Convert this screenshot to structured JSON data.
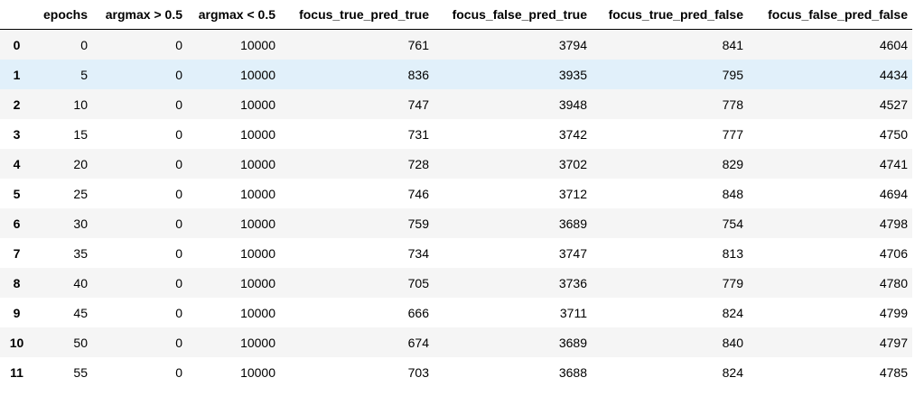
{
  "table": {
    "index_header": "",
    "columns": [
      "epochs",
      "argmax > 0.5",
      "argmax < 0.5",
      "focus_true_pred_true",
      "focus_false_pred_true",
      "focus_true_pred_false",
      "focus_false_pred_false"
    ],
    "highlighted_row": 1,
    "rows": [
      {
        "index": "0",
        "cells": [
          "0",
          "0",
          "10000",
          "761",
          "3794",
          "841",
          "4604"
        ]
      },
      {
        "index": "1",
        "cells": [
          "5",
          "0",
          "10000",
          "836",
          "3935",
          "795",
          "4434"
        ]
      },
      {
        "index": "2",
        "cells": [
          "10",
          "0",
          "10000",
          "747",
          "3948",
          "778",
          "4527"
        ]
      },
      {
        "index": "3",
        "cells": [
          "15",
          "0",
          "10000",
          "731",
          "3742",
          "777",
          "4750"
        ]
      },
      {
        "index": "4",
        "cells": [
          "20",
          "0",
          "10000",
          "728",
          "3702",
          "829",
          "4741"
        ]
      },
      {
        "index": "5",
        "cells": [
          "25",
          "0",
          "10000",
          "746",
          "3712",
          "848",
          "4694"
        ]
      },
      {
        "index": "6",
        "cells": [
          "30",
          "0",
          "10000",
          "759",
          "3689",
          "754",
          "4798"
        ]
      },
      {
        "index": "7",
        "cells": [
          "35",
          "0",
          "10000",
          "734",
          "3747",
          "813",
          "4706"
        ]
      },
      {
        "index": "8",
        "cells": [
          "40",
          "0",
          "10000",
          "705",
          "3736",
          "779",
          "4780"
        ]
      },
      {
        "index": "9",
        "cells": [
          "45",
          "0",
          "10000",
          "666",
          "3711",
          "824",
          "4799"
        ]
      },
      {
        "index": "10",
        "cells": [
          "50",
          "0",
          "10000",
          "674",
          "3689",
          "840",
          "4797"
        ]
      },
      {
        "index": "11",
        "cells": [
          "55",
          "0",
          "10000",
          "703",
          "3688",
          "824",
          "4785"
        ]
      }
    ]
  },
  "colors": {
    "stripe": "#f5f5f5",
    "hover": "#e1f0fa",
    "header_rule": "#000000"
  }
}
